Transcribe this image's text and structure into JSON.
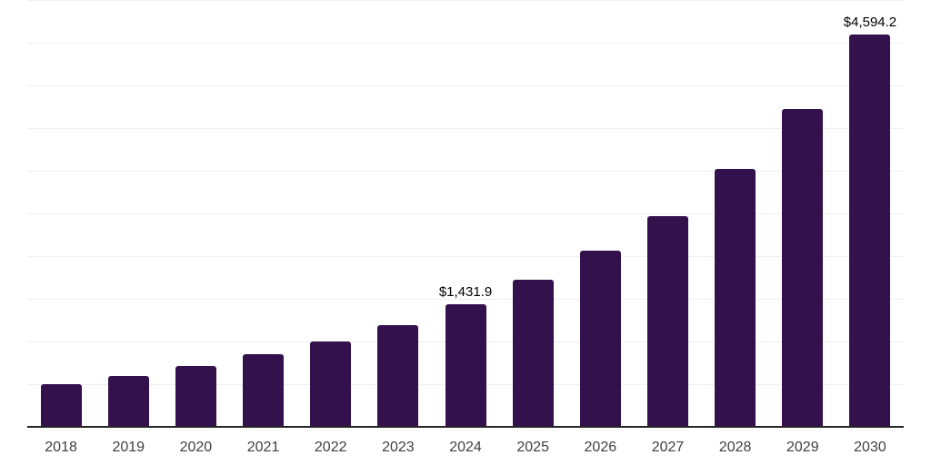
{
  "chart_data": {
    "type": "bar",
    "title": "",
    "xlabel": "",
    "ylabel": "",
    "categories": [
      "2018",
      "2019",
      "2020",
      "2021",
      "2022",
      "2023",
      "2024",
      "2025",
      "2026",
      "2027",
      "2028",
      "2029",
      "2030"
    ],
    "values": [
      500,
      600,
      710,
      850,
      995,
      1190,
      1431.9,
      1725,
      2065,
      2470,
      3020,
      3725,
      4594.2
    ],
    "value_labels": [
      "",
      "",
      "",
      "",
      "",
      "",
      "$1,431.9",
      "",
      "",
      "",
      "",
      "",
      "$4,594.2"
    ],
    "ylim": [
      0,
      5000
    ],
    "gridline_step": 500,
    "grid": true,
    "legend": false,
    "colors": {
      "bar": "#33114d",
      "gridline": "#f0f0f0",
      "axis_line": "#262626",
      "tick_label": "#404040",
      "value_label": "#000000"
    }
  }
}
